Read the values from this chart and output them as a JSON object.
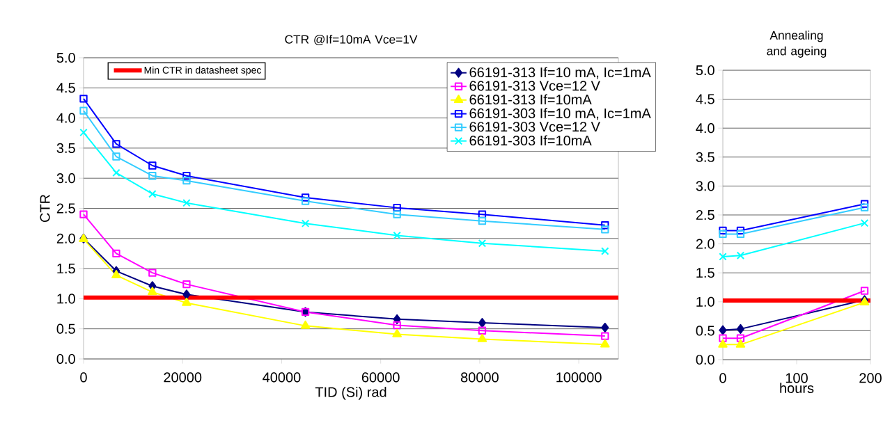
{
  "chart_data": [
    {
      "type": "line",
      "title": "CTR @If=10mA Vce=1V",
      "xlabel": "TID (Si) rad",
      "ylabel": "CTR",
      "x": [
        0,
        6600,
        13900,
        20800,
        44800,
        63300,
        80500,
        105300
      ],
      "xlim": [
        0,
        108000
      ],
      "xticks": [
        0,
        20000,
        40000,
        60000,
        80000,
        100000
      ],
      "ylim": [
        0,
        5
      ],
      "yticks": [
        {
          "value": 0,
          "label": "0.0"
        },
        {
          "value": 0.5,
          "label": "0.5"
        },
        {
          "value": 1,
          "label": "1.0"
        },
        {
          "value": 1.5,
          "label": "1.5"
        },
        {
          "value": 2,
          "label": "2.0"
        },
        {
          "value": 2.5,
          "label": "2.5"
        },
        {
          "value": 3,
          "label": "3.0"
        },
        {
          "value": 3.5,
          "label": "3.5"
        },
        {
          "value": 4,
          "label": "4.0"
        },
        {
          "value": 4.5,
          "label": "4.5"
        },
        {
          "value": 5,
          "label": "5.0"
        }
      ],
      "grid": "y",
      "legend": "top right",
      "line_style": "solid",
      "ref_lines": [
        {
          "axis": "y",
          "value": 1.02,
          "label": "Min CTR in datasheet spec",
          "color": "#ff0000"
        }
      ],
      "series": [
        {
          "name": "66191-313 If=10 mA, Ic=1mA",
          "color": "#000080",
          "marker": "diamond",
          "values": [
            2.0,
            1.46,
            1.21,
            1.07,
            0.78,
            0.66,
            0.6,
            0.52
          ]
        },
        {
          "name": "66191-313 Vce=12 V",
          "color": "#ff00ff",
          "marker": "square",
          "values": [
            2.4,
            1.75,
            1.43,
            1.24,
            0.78,
            0.56,
            0.47,
            0.38
          ]
        },
        {
          "name": "66191-313 If=10mA",
          "color": "#ffff00",
          "marker": "triangle",
          "values": [
            1.99,
            1.39,
            1.11,
            0.93,
            0.55,
            0.41,
            0.33,
            0.24
          ]
        },
        {
          "name": "66191-303 If=10 mA, Ic=1mA",
          "color": "#0000ff",
          "marker": "square",
          "values": [
            4.32,
            3.57,
            3.21,
            3.04,
            2.68,
            2.51,
            2.4,
            2.22
          ]
        },
        {
          "name": "66191-303 Vce=12 V",
          "color": "#33ccff",
          "marker": "square",
          "values": [
            4.12,
            3.36,
            3.04,
            2.96,
            2.62,
            2.4,
            2.29,
            2.15
          ]
        },
        {
          "name": "66191-303 If=10mA",
          "color": "#00ffff",
          "marker": "cross",
          "values": [
            3.76,
            3.09,
            2.74,
            2.59,
            2.25,
            2.05,
            1.92,
            1.79
          ]
        }
      ]
    },
    {
      "type": "line",
      "title": "Annealing and ageing",
      "xlabel": "hours",
      "x": [
        0,
        24,
        192
      ],
      "xlim": [
        0,
        200
      ],
      "xticks": [
        0,
        100,
        200
      ],
      "ylim": [
        0,
        5
      ],
      "yticks": [
        {
          "value": 0,
          "label": "0.0"
        },
        {
          "value": 0.5,
          "label": "0.5"
        },
        {
          "value": 1,
          "label": "1.0"
        },
        {
          "value": 1.5,
          "label": "1.5"
        },
        {
          "value": 2,
          "label": "2.0"
        },
        {
          "value": 2.5,
          "label": "2.5"
        },
        {
          "value": 3,
          "label": "3.0"
        },
        {
          "value": 3.5,
          "label": "3.5"
        },
        {
          "value": 4,
          "label": "4.0"
        },
        {
          "value": 4.5,
          "label": "4.5"
        },
        {
          "value": 5,
          "label": "5.0"
        }
      ],
      "grid": "y",
      "line_style": "solid",
      "ref_lines": [
        {
          "axis": "y",
          "value": 1.02,
          "color": "#ff0000"
        }
      ],
      "series": [
        {
          "color": "#000080",
          "marker": "diamond",
          "values": [
            0.51,
            0.53,
            1.03
          ]
        },
        {
          "color": "#ff00ff",
          "marker": "square",
          "values": [
            0.37,
            0.37,
            1.19
          ]
        },
        {
          "color": "#ffff00",
          "marker": "triangle",
          "values": [
            0.26,
            0.26,
            0.99
          ]
        },
        {
          "color": "#0000ff",
          "marker": "square",
          "values": [
            2.23,
            2.23,
            2.69
          ]
        },
        {
          "color": "#33ccff",
          "marker": "square",
          "values": [
            2.17,
            2.17,
            2.63
          ]
        },
        {
          "color": "#00ffff",
          "marker": "cross",
          "values": [
            1.78,
            1.8,
            2.36
          ]
        }
      ]
    }
  ]
}
